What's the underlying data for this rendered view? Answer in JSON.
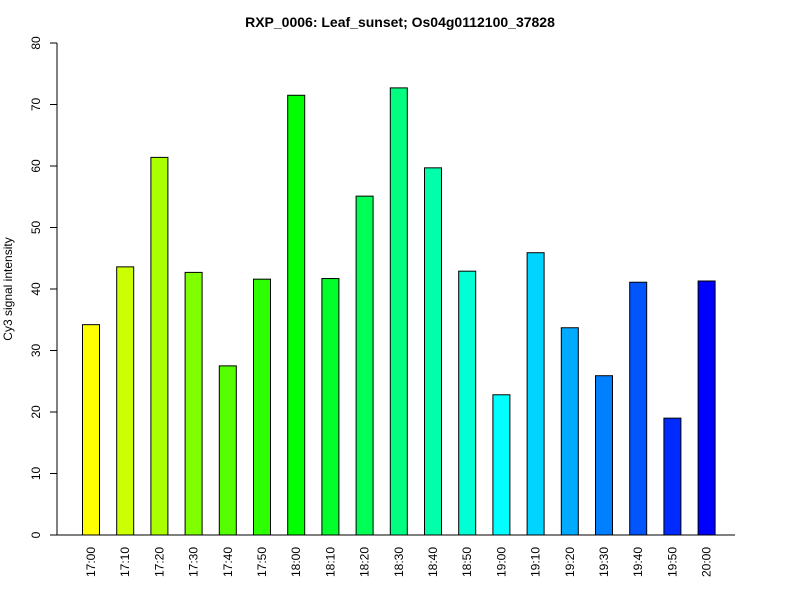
{
  "chart_data": {
    "type": "bar",
    "title": "RXP_0006: Leaf_sunset; Os04g0112100_37828",
    "xlabel": "",
    "ylabel": "Cy3 signal intensity",
    "ylim": [
      0,
      80
    ],
    "yticks": [
      0,
      10,
      20,
      30,
      40,
      50,
      60,
      70,
      80
    ],
    "grid": false,
    "legend": "none",
    "categories": [
      "17:00",
      "17:10",
      "17:20",
      "17:30",
      "17:40",
      "17:50",
      "18:00",
      "18:10",
      "18:20",
      "18:30",
      "18:40",
      "18:50",
      "19:00",
      "19:10",
      "19:20",
      "19:30",
      "19:40",
      "19:50",
      "20:00"
    ],
    "values": [
      34.2,
      43.6,
      61.4,
      42.7,
      27.5,
      41.6,
      71.5,
      41.7,
      55.1,
      72.7,
      59.7,
      42.9,
      22.8,
      45.9,
      33.7,
      25.9,
      41.1,
      19.0,
      41.3
    ],
    "colors": [
      "#ffff00",
      "#ccff00",
      "#aaff00",
      "#80ff00",
      "#55ff00",
      "#2bff00",
      "#00ff00",
      "#00ff2b",
      "#00ff55",
      "#00ff80",
      "#00ffaa",
      "#00ffd4",
      "#00ffff",
      "#00d4ff",
      "#00aaff",
      "#0080ff",
      "#0055ff",
      "#002bff",
      "#0000ff"
    ]
  }
}
